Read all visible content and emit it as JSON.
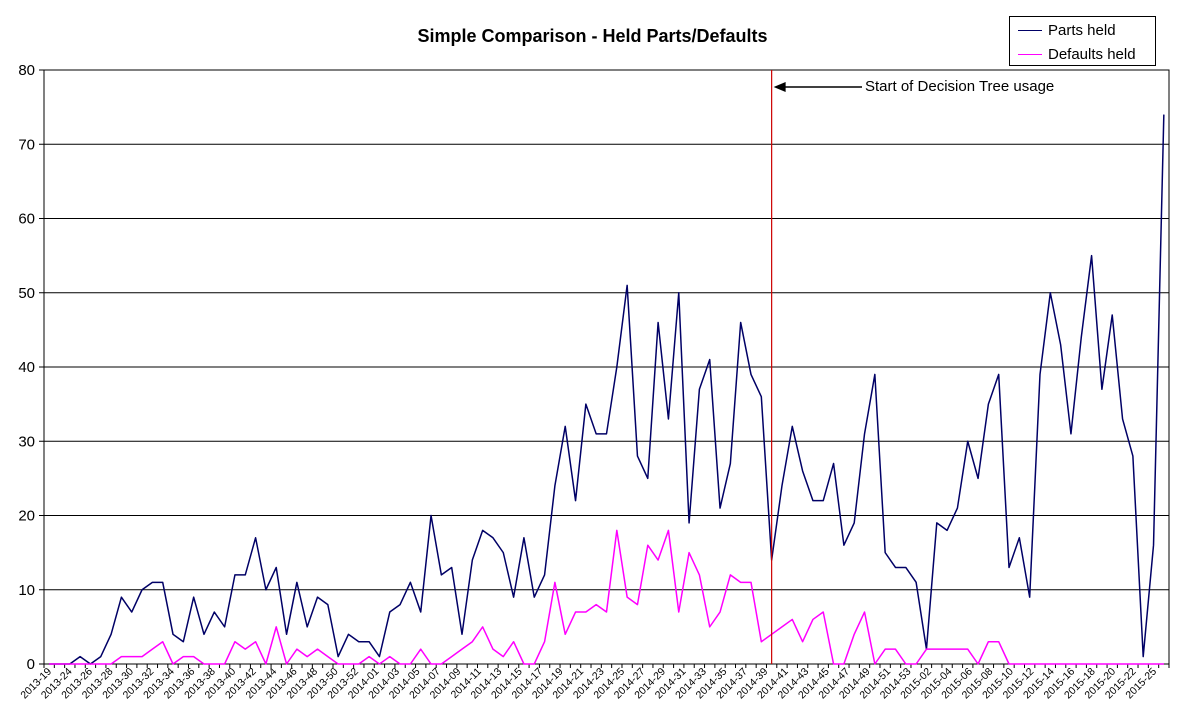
{
  "chart_data": {
    "type": "line",
    "title": "Simple Comparison - Held Parts/Defaults",
    "xlabel": "",
    "ylabel": "",
    "ylim": [
      0,
      80
    ],
    "yticks": [
      0,
      10,
      20,
      30,
      40,
      50,
      60,
      70,
      80
    ],
    "grid": "horizontal",
    "legend_position": "top-right",
    "x_tick_labels": [
      "2013-19",
      "2013-24",
      "2013-26",
      "2013-28",
      "2013-30",
      "2013-32",
      "2013-34",
      "2013-36",
      "2013-38",
      "2013-40",
      "2013-42",
      "2013-44",
      "2013-46",
      "2013-48",
      "2013-50",
      "2013-52",
      "2014-01",
      "2014-03",
      "2014-05",
      "2014-07",
      "2014-09",
      "2014-11",
      "2014-13",
      "2014-15",
      "2014-17",
      "2014-19",
      "2014-21",
      "2014-23",
      "2014-25",
      "2014-27",
      "2014-29",
      "2014-31",
      "2014-33",
      "2014-35",
      "2014-37",
      "2014-39",
      "2014-41",
      "2014-43",
      "2014-45",
      "2014-47",
      "2014-49",
      "2014-51",
      "2014-53",
      "2015-02",
      "2015-04",
      "2015-06",
      "2015-08",
      "2015-10",
      "2015-12",
      "2015-14",
      "2015-16",
      "2015-18",
      "2015-20",
      "2015-22",
      "2015-25"
    ],
    "series": [
      {
        "name": "Parts held",
        "color": "#000066",
        "values": [
          0,
          0,
          0,
          1,
          0,
          1,
          4,
          9,
          7,
          10,
          11,
          11,
          4,
          3,
          9,
          4,
          7,
          5,
          12,
          12,
          17,
          10,
          13,
          4,
          11,
          5,
          9,
          8,
          1,
          4,
          3,
          3,
          1,
          7,
          8,
          11,
          7,
          20,
          12,
          13,
          4,
          14,
          18,
          17,
          15,
          9,
          17,
          9,
          12,
          24,
          32,
          22,
          35,
          31,
          31,
          40,
          51,
          28,
          25,
          46,
          33,
          50,
          19,
          37,
          41,
          21,
          27,
          46,
          39,
          36,
          14,
          24,
          32,
          26,
          22,
          22,
          27,
          16,
          19,
          31,
          39,
          15,
          13,
          13,
          11,
          2,
          19,
          18,
          21,
          30,
          25,
          35,
          39,
          13,
          17,
          9,
          39,
          50,
          43,
          31,
          44,
          55,
          37,
          47,
          33,
          28,
          1,
          16,
          74
        ]
      },
      {
        "name": "Defaults held",
        "color": "#ff00ff",
        "values": [
          0,
          0,
          0,
          0,
          0,
          0,
          0,
          1,
          1,
          1,
          2,
          3,
          0,
          1,
          1,
          0,
          0,
          0,
          3,
          2,
          3,
          0,
          5,
          0,
          2,
          1,
          2,
          1,
          0,
          0,
          0,
          1,
          0,
          1,
          0,
          0,
          2,
          0,
          0,
          1,
          2,
          3,
          5,
          2,
          1,
          3,
          0,
          0,
          3,
          11,
          4,
          7,
          7,
          8,
          7,
          18,
          9,
          8,
          16,
          14,
          18,
          7,
          15,
          12,
          5,
          7,
          12,
          11,
          11,
          3,
          4,
          5,
          6,
          3,
          6,
          7,
          0,
          0,
          4,
          7,
          0,
          2,
          2,
          0,
          0,
          2,
          2,
          2,
          2,
          2,
          0,
          3,
          3,
          0,
          0,
          0,
          0,
          0,
          0,
          0,
          0,
          0,
          0,
          0,
          0,
          0,
          0,
          0,
          0
        ]
      }
    ],
    "annotation": {
      "text": "Start of Decision Tree usage",
      "at_index": 70.5,
      "line_color": "#cc0000"
    }
  }
}
